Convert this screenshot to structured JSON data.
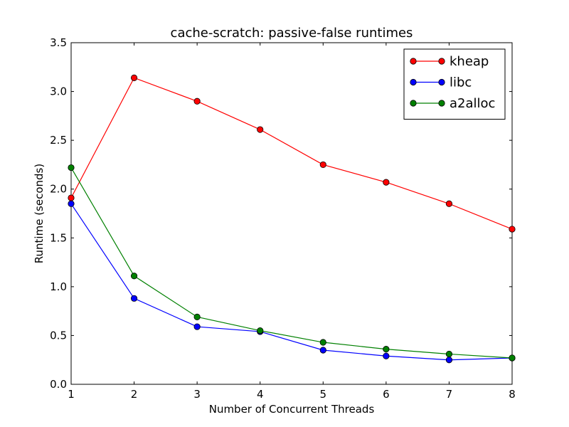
{
  "chart_data": {
    "type": "line",
    "title": "cache-scratch: passive-false runtimes",
    "xlabel": "Number of Concurrent Threads",
    "ylabel": "Runtime (seconds)",
    "x": [
      1,
      2,
      3,
      4,
      5,
      6,
      7,
      8
    ],
    "xlim": [
      1,
      8
    ],
    "ylim": [
      0.0,
      3.5
    ],
    "x_ticks": [
      "1",
      "2",
      "3",
      "4",
      "5",
      "6",
      "7",
      "8"
    ],
    "y_ticks": [
      "0.0",
      "0.5",
      "1.0",
      "1.5",
      "2.0",
      "2.5",
      "3.0",
      "3.5"
    ],
    "grid": false,
    "legend_position": "top-right",
    "series": [
      {
        "name": "kheap",
        "color": "#ff0000",
        "values": [
          1.91,
          3.14,
          2.9,
          2.61,
          2.25,
          2.07,
          1.85,
          1.59
        ]
      },
      {
        "name": "libc",
        "color": "#0000ff",
        "values": [
          1.85,
          0.88,
          0.59,
          0.54,
          0.35,
          0.29,
          0.25,
          0.27
        ]
      },
      {
        "name": "a2alloc",
        "color": "#008000",
        "values": [
          2.22,
          1.11,
          0.69,
          0.55,
          0.43,
          0.36,
          0.31,
          0.27
        ]
      }
    ]
  }
}
